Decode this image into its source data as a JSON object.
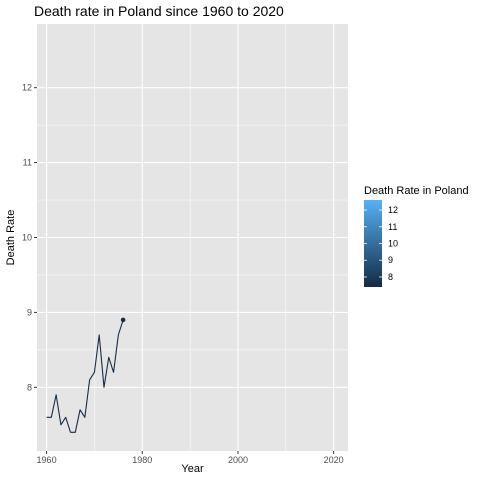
{
  "chart_data": {
    "type": "line",
    "title": "Death rate in Poland since 1960 to 2020",
    "xlabel": "Year",
    "ylabel": "Death Rate",
    "xlim": [
      1958,
      2023
    ],
    "ylim": [
      7.15,
      12.85
    ],
    "x_ticks": [
      1960,
      1980,
      2000,
      2020
    ],
    "y_ticks": [
      8,
      9,
      10,
      11,
      12
    ],
    "grid": true,
    "legend_position": "right",
    "x": [
      1960,
      1961,
      1962,
      1963,
      1964,
      1965,
      1966,
      1967,
      1968,
      1969,
      1970,
      1971,
      1972,
      1973,
      1974,
      1975,
      1976
    ],
    "series": [
      {
        "values": [
          7.6,
          7.6,
          7.9,
          7.5,
          7.6,
          7.4,
          7.4,
          7.7,
          7.6,
          8.1,
          8.2,
          8.7,
          8.0,
          8.4,
          8.2,
          8.7,
          8.9
        ]
      }
    ],
    "highlight_point": {
      "x": 1976,
      "y": 8.9
    },
    "colors": {
      "panel": "#e5e5e5",
      "grid": "#ffffff",
      "line": "#152d46",
      "gradient_low": "#132b43",
      "gradient_high": "#56b1f7"
    },
    "legend": {
      "title": "Death Rate in Poland",
      "range": [
        7.4,
        12.6
      ],
      "ticks": [
        8,
        9,
        10,
        11,
        12
      ]
    }
  }
}
